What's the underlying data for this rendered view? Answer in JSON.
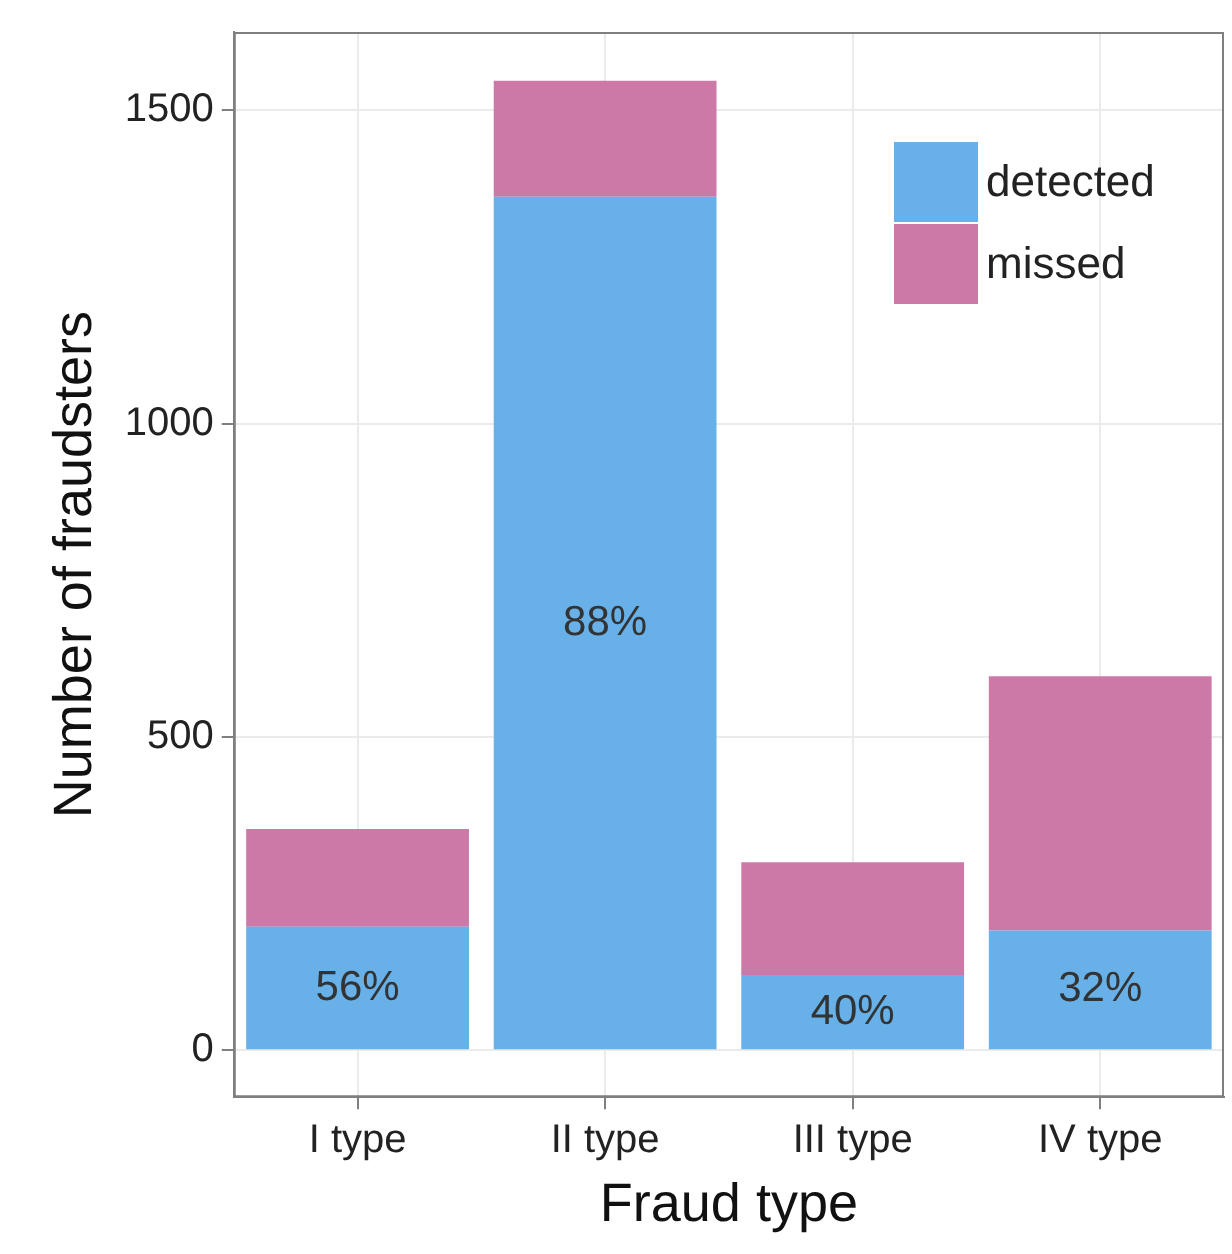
{
  "chart_data": {
    "type": "bar",
    "xlabel": "Fraud type",
    "ylabel": "Number of fraudsters",
    "categories": [
      "I type",
      "II type",
      "III type",
      "IV type"
    ],
    "stacked": true,
    "ylim": [
      -75,
      1625
    ],
    "yticks": [
      0,
      500,
      1000,
      1500
    ],
    "grid": true,
    "legend": "top right",
    "annotations": [
      "56%",
      "88%",
      "40%",
      "32%"
    ],
    "series": [
      {
        "name": "detected",
        "color": "#67b0e8",
        "values": [
          197,
          1362,
          120,
          191
        ]
      },
      {
        "name": "missed",
        "color": "#cc79a7",
        "values": [
          156,
          185,
          180,
          406
        ]
      }
    ]
  }
}
